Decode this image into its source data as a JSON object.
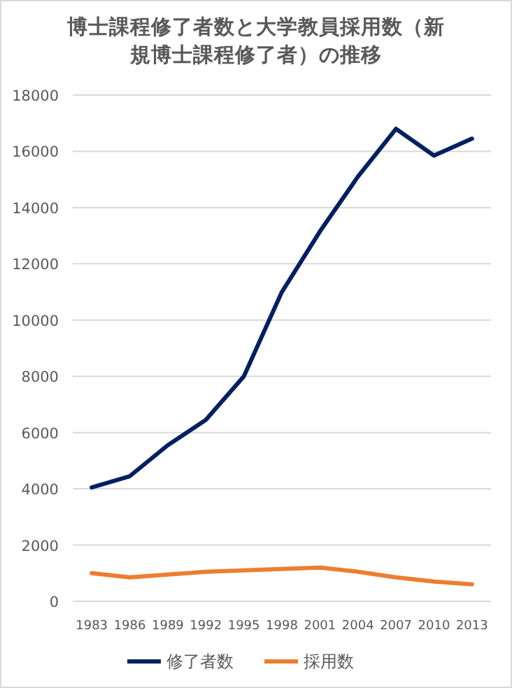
{
  "chart_data": {
    "type": "line",
    "title": "博士課程修了者数と大学教員採用数（新規博士課程修了者）の推移",
    "categories": [
      "1983",
      "1986",
      "1989",
      "1992",
      "1995",
      "1998",
      "2001",
      "2004",
      "2007",
      "2010",
      "2013"
    ],
    "series": [
      {
        "name": "修了者数",
        "color": "#002060",
        "values": [
          4050,
          4450,
          5550,
          6450,
          8000,
          11000,
          13150,
          15100,
          16800,
          15850,
          16450
        ]
      },
      {
        "name": "採用数",
        "color": "#ed7d31",
        "values": [
          1000,
          850,
          950,
          1050,
          1100,
          1150,
          1200,
          1050,
          850,
          700,
          600
        ]
      }
    ],
    "ylim": [
      0,
      18000
    ],
    "yticks": [
      0,
      2000,
      4000,
      6000,
      8000,
      10000,
      12000,
      14000,
      16000,
      18000
    ],
    "grid": "y",
    "legend": "bottom",
    "marker": "none",
    "line_style": "solid"
  }
}
